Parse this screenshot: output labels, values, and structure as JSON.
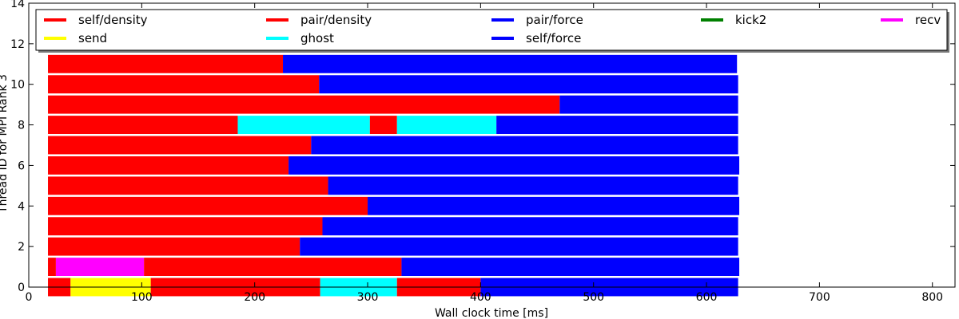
{
  "chart_data": {
    "type": "bar",
    "orientation": "horizontal",
    "xlabel": "Wall clock time [ms]",
    "ylabel": "Thread ID for MPI Rank 3",
    "xlim": [
      0,
      820
    ],
    "ylim": [
      0,
      14
    ],
    "x_ticks": [
      0,
      100,
      200,
      300,
      400,
      500,
      600,
      700,
      800
    ],
    "y_ticks": [
      0,
      2,
      4,
      6,
      8,
      10,
      12,
      14
    ],
    "grid": false,
    "legend_position": "top",
    "legend_columns": 5,
    "legend": [
      {
        "name": "self/density",
        "color": "#ff0000"
      },
      {
        "name": "pair/density",
        "color": "#ff0000"
      },
      {
        "name": "pair/force",
        "color": "#0000ff"
      },
      {
        "name": "kick2",
        "color": "#008000"
      },
      {
        "name": "recv",
        "color": "#ff00ff"
      },
      {
        "name": "send",
        "color": "#ffff00"
      },
      {
        "name": "ghost",
        "color": "#00ffff"
      },
      {
        "name": "self/force",
        "color": "#0000ff"
      }
    ],
    "threads": [
      {
        "thread": 0,
        "segments": [
          {
            "task": "self/density",
            "start": 17,
            "end": 37
          },
          {
            "task": "send",
            "start": 37,
            "end": 108
          },
          {
            "task": "self/density",
            "start": 108,
            "end": 258
          },
          {
            "task": "ghost",
            "start": 258,
            "end": 326
          },
          {
            "task": "pair/density",
            "start": 326,
            "end": 400
          },
          {
            "task": "pair/force",
            "start": 400,
            "end": 628
          }
        ]
      },
      {
        "thread": 1,
        "segments": [
          {
            "task": "self/density",
            "start": 17,
            "end": 24
          },
          {
            "task": "recv",
            "start": 24,
            "end": 102
          },
          {
            "task": "self/density",
            "start": 102,
            "end": 330
          },
          {
            "task": "pair/force",
            "start": 330,
            "end": 629
          }
        ]
      },
      {
        "thread": 2,
        "segments": [
          {
            "task": "self/density",
            "start": 17,
            "end": 240
          },
          {
            "task": "pair/force",
            "start": 240,
            "end": 628
          }
        ]
      },
      {
        "thread": 3,
        "segments": [
          {
            "task": "self/density",
            "start": 17,
            "end": 260
          },
          {
            "task": "pair/force",
            "start": 260,
            "end": 628
          }
        ]
      },
      {
        "thread": 4,
        "segments": [
          {
            "task": "self/density",
            "start": 17,
            "end": 300
          },
          {
            "task": "pair/force",
            "start": 300,
            "end": 629
          }
        ]
      },
      {
        "thread": 5,
        "segments": [
          {
            "task": "self/density",
            "start": 17,
            "end": 265
          },
          {
            "task": "pair/force",
            "start": 265,
            "end": 628
          }
        ]
      },
      {
        "thread": 6,
        "segments": [
          {
            "task": "self/density",
            "start": 17,
            "end": 230
          },
          {
            "task": "pair/force",
            "start": 230,
            "end": 629
          }
        ]
      },
      {
        "thread": 7,
        "segments": [
          {
            "task": "self/density",
            "start": 17,
            "end": 250
          },
          {
            "task": "pair/force",
            "start": 250,
            "end": 628
          }
        ]
      },
      {
        "thread": 8,
        "segments": [
          {
            "task": "self/density",
            "start": 17,
            "end": 185
          },
          {
            "task": "ghost",
            "start": 185,
            "end": 302
          },
          {
            "task": "pair/density",
            "start": 302,
            "end": 326
          },
          {
            "task": "ghost",
            "start": 326,
            "end": 414
          },
          {
            "task": "pair/force",
            "start": 414,
            "end": 628
          }
        ]
      },
      {
        "thread": 9,
        "segments": [
          {
            "task": "self/density",
            "start": 17,
            "end": 470
          },
          {
            "task": "pair/force",
            "start": 470,
            "end": 628
          }
        ]
      },
      {
        "thread": 10,
        "segments": [
          {
            "task": "self/density",
            "start": 17,
            "end": 257
          },
          {
            "task": "pair/force",
            "start": 257,
            "end": 628
          }
        ]
      },
      {
        "thread": 11,
        "segments": [
          {
            "task": "self/density",
            "start": 17,
            "end": 225
          },
          {
            "task": "pair/force",
            "start": 225,
            "end": 627
          }
        ]
      }
    ]
  }
}
